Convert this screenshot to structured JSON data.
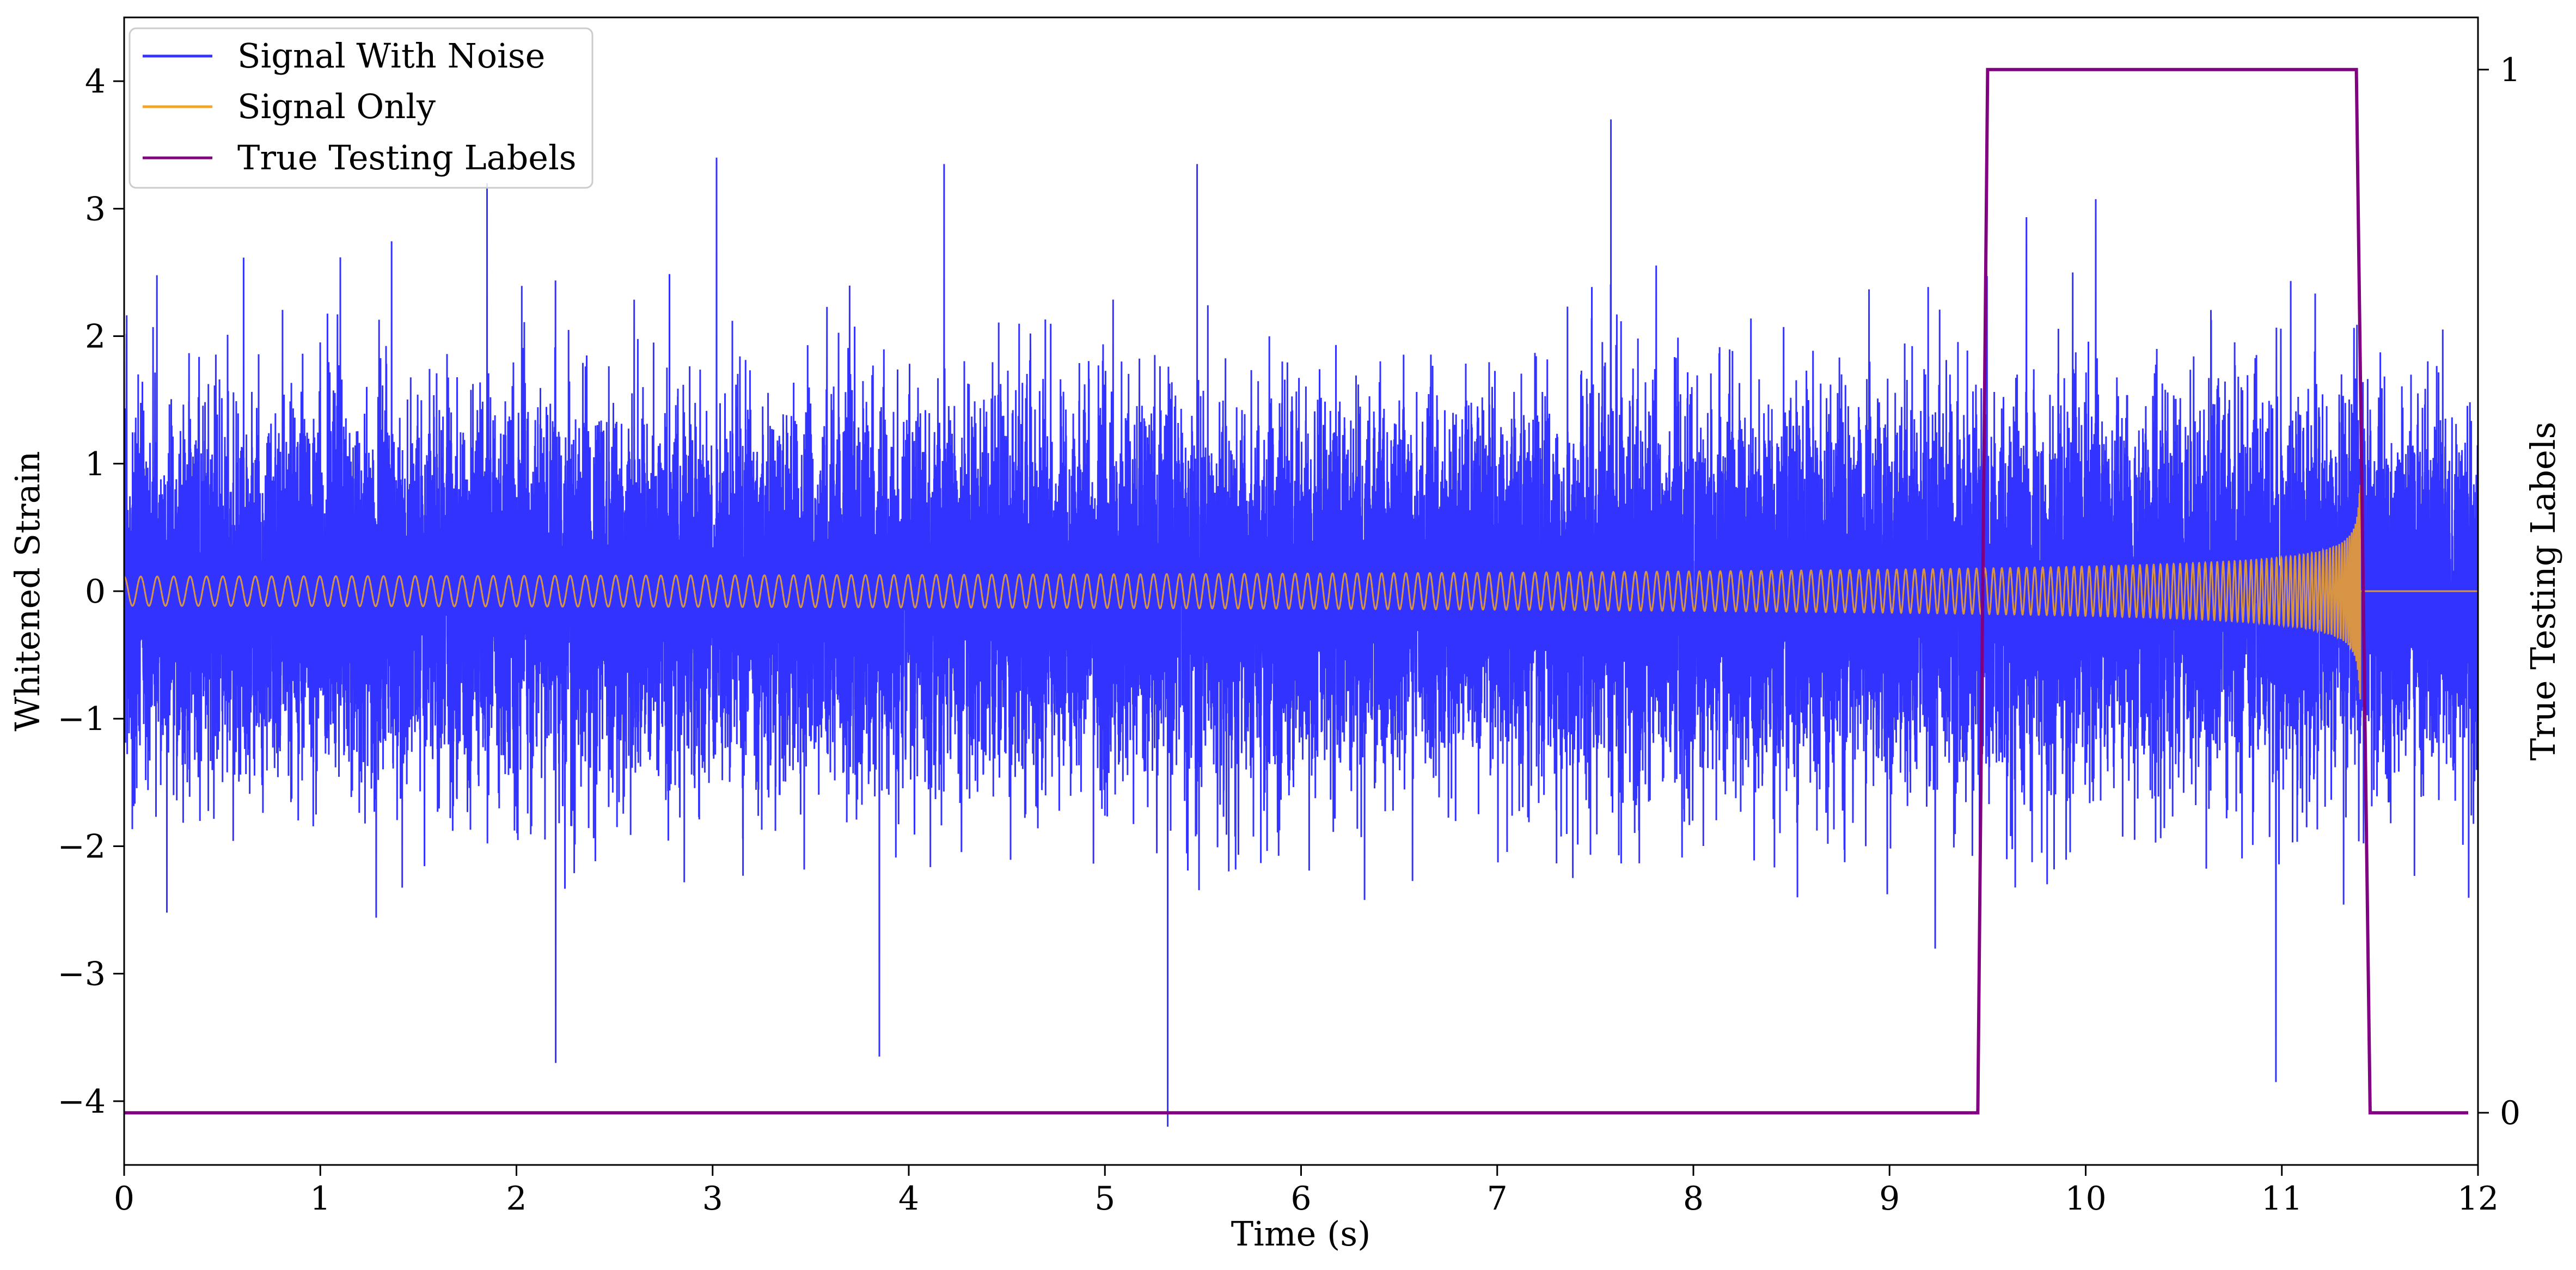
{
  "chart_data": {
    "type": "line",
    "title": "",
    "xlabel": "Time (s)",
    "ylabel": "Whitened Strain",
    "y2label": "True Testing Labels",
    "xlim": [
      0,
      12
    ],
    "ylim": [
      -4.5,
      4.5
    ],
    "y2lim": [
      -0.05,
      1.05
    ],
    "xticks": [
      0,
      1,
      2,
      3,
      4,
      5,
      6,
      7,
      8,
      9,
      10,
      11,
      12
    ],
    "yticks": [
      -4,
      -3,
      -2,
      -1,
      0,
      1,
      2,
      3,
      4
    ],
    "y2ticks": [
      0,
      1
    ],
    "grid": false,
    "legend_position": "top-left",
    "series": [
      {
        "name": "Signal With Noise",
        "axis": "left",
        "color": "#3333ff",
        "description_values": {
          "noise_std": 0.7,
          "max": 3.7,
          "min": -4.2,
          "spikes": [
            [
              1.85,
              3.2
            ],
            [
              3.02,
              3.4
            ],
            [
              4.18,
              3.35
            ],
            [
              5.47,
              3.35
            ],
            [
              7.58,
              3.7
            ],
            [
              2.2,
              -3.7
            ],
            [
              3.85,
              -3.65
            ],
            [
              5.32,
              -4.2
            ],
            [
              10.97,
              -3.85
            ]
          ]
        }
      },
      {
        "name": "Signal Only",
        "axis": "left",
        "color": "#f5a623",
        "description_values": {
          "chirp_start": 0,
          "chirp_end": 11.4,
          "amplitude_start": 0.05,
          "amplitude_at_9_5": 0.18,
          "amplitude_peak": 1.1,
          "value_after_end": 0
        }
      },
      {
        "name": "True Testing Labels",
        "axis": "right",
        "color": "#800080",
        "x": [
          0,
          9.45,
          9.5,
          11.38,
          11.45,
          11.95
        ],
        "values": [
          0,
          0,
          1,
          1,
          0,
          0
        ]
      }
    ]
  }
}
